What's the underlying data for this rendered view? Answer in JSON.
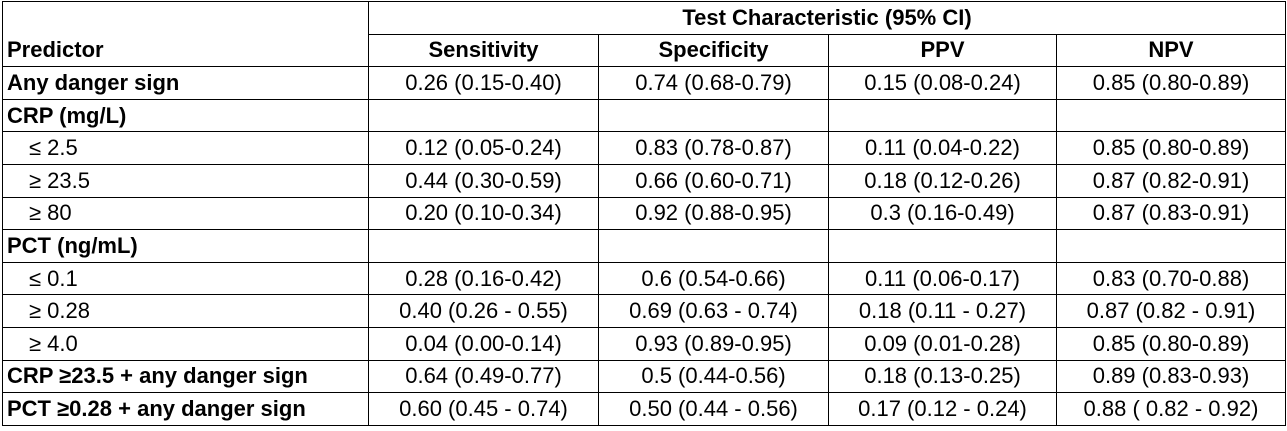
{
  "header": {
    "group_title": "Test Characteristic (95% CI)",
    "predictor_label": "Predictor",
    "columns": [
      "Sensitivity",
      "Specificity",
      "PPV",
      "NPV"
    ]
  },
  "rows": [
    {
      "label": "Any danger sign",
      "bold": true,
      "values": [
        "0.26 (0.15-0.40)",
        "0.74 (0.68-0.79)",
        "0.15 (0.08-0.24)",
        "0.85 (0.80-0.89)"
      ]
    },
    {
      "label": "CRP (mg/L)",
      "bold": true,
      "values": [
        "",
        "",
        "",
        ""
      ]
    },
    {
      "label": "≤ 2.5",
      "bold": false,
      "values": [
        "0.12 (0.05-0.24)",
        "0.83 (0.78-0.87)",
        "0.11 (0.04-0.22)",
        "0.85 (0.80-0.89)"
      ]
    },
    {
      "label": "≥ 23.5",
      "bold": false,
      "values": [
        "0.44 (0.30-0.59)",
        "0.66 (0.60-0.71)",
        "0.18 (0.12-0.26)",
        "0.87 (0.82-0.91)"
      ]
    },
    {
      "label": "≥ 80",
      "bold": false,
      "values": [
        "0.20 (0.10-0.34)",
        "0.92 (0.88-0.95)",
        "0.3 (0.16-0.49)",
        "0.87 (0.83-0.91)"
      ]
    },
    {
      "label": "PCT (ng/mL)",
      "bold": true,
      "values": [
        "",
        "",
        "",
        ""
      ]
    },
    {
      "label": "≤ 0.1",
      "bold": false,
      "values": [
        "0.28 (0.16-0.42)",
        "0.6 (0.54-0.66)",
        "0.11 (0.06-0.17)",
        "0.83 (0.70-0.88)"
      ]
    },
    {
      "label": "≥ 0.28",
      "bold": false,
      "values": [
        "0.40 (0.26 - 0.55)",
        "0.69 (0.63 - 0.74)",
        "0.18 (0.11 - 0.27)",
        "0.87 (0.82 - 0.91)"
      ]
    },
    {
      "label": "≥ 4.0",
      "bold": false,
      "values": [
        "0.04 (0.00-0.14)",
        "0.93 (0.89-0.95)",
        "0.09 (0.01-0.28)",
        "0.85 (0.80-0.89)"
      ]
    },
    {
      "label": "CRP ≥23.5 + any danger sign",
      "bold": true,
      "values": [
        "0.64 (0.49-0.77)",
        "0.5 (0.44-0.56)",
        "0.18 (0.13-0.25)",
        "0.89 (0.83-0.93)"
      ]
    },
    {
      "label": "PCT ≥0.28 + any danger sign",
      "bold": true,
      "values": [
        "0.60 (0.45 - 0.74)",
        "0.50 (0.44 - 0.56)",
        "0.17 (0.12 - 0.24)",
        "0.88 ( 0.82 - 0.92)"
      ]
    }
  ]
}
